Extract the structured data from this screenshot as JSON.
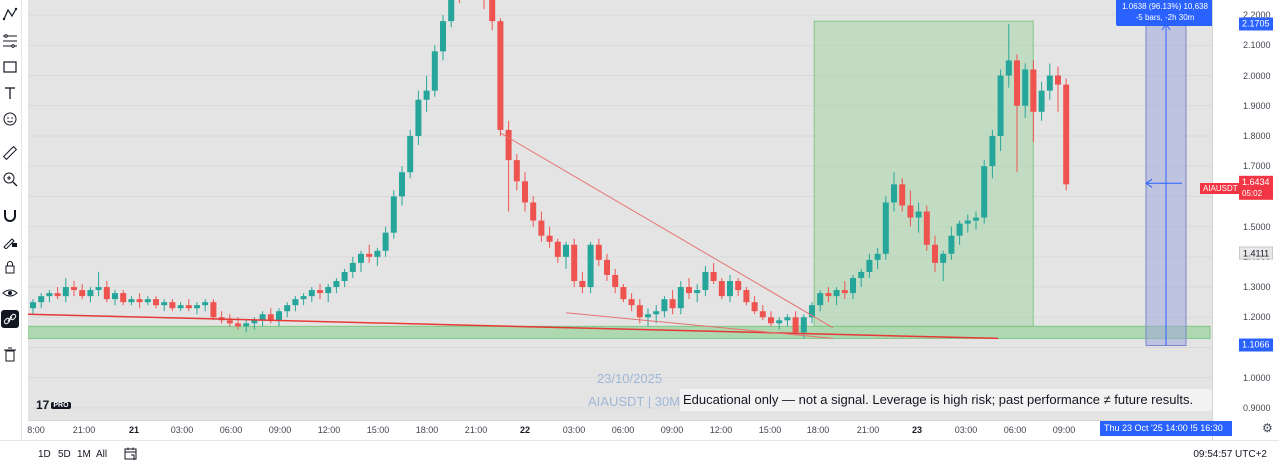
{
  "symbol": "AIAUSDT",
  "timeframe": "30M",
  "watermark": {
    "date": "23/10/2025",
    "symbol_line": "AIAUSDT | 30M"
  },
  "disclaimer": "Educational only — not a signal. Leverage is high risk; past performance ≠ future results.",
  "brand": {
    "logo_text": "17",
    "pro_badge": "PRO"
  },
  "measure": {
    "line1": "1.0638 (96.13%) 10,638",
    "line2": "-5 bars, -2h 30m"
  },
  "price_axis": {
    "ticks": [
      "2.2000",
      "2.1000",
      "2.0000",
      "1.9000",
      "1.8000",
      "1.7000",
      "1.6000",
      "1.5000",
      "1.4000",
      "1.3000",
      "1.2000",
      "1.1000",
      "1.0000",
      "0.9000"
    ],
    "tag_top": "2.1705",
    "tag_current_name": "AIAUSDT",
    "tag_current": "1.6434",
    "tag_countdown": "05:02",
    "tag_level": "1.4111",
    "tag_bottom": "1.1066"
  },
  "time_axis": {
    "ticks": [
      {
        "label": "8:00",
        "bold": false
      },
      {
        "label": "21:00",
        "bold": false
      },
      {
        "label": "21",
        "bold": true
      },
      {
        "label": "03:00",
        "bold": false
      },
      {
        "label": "06:00",
        "bold": false
      },
      {
        "label": "09:00",
        "bold": false
      },
      {
        "label": "12:00",
        "bold": false
      },
      {
        "label": "15:00",
        "bold": false
      },
      {
        "label": "18:00",
        "bold": false
      },
      {
        "label": "21:00",
        "bold": false
      },
      {
        "label": "22",
        "bold": true
      },
      {
        "label": "03:00",
        "bold": false
      },
      {
        "label": "06:00",
        "bold": false
      },
      {
        "label": "09:00",
        "bold": false
      },
      {
        "label": "12:00",
        "bold": false
      },
      {
        "label": "15:00",
        "bold": false
      },
      {
        "label": "18:00",
        "bold": false
      },
      {
        "label": "21:00",
        "bold": false
      },
      {
        "label": "23",
        "bold": true
      },
      {
        "label": "03:00",
        "bold": false
      },
      {
        "label": "06:00",
        "bold": false
      },
      {
        "label": "09:00",
        "bold": false
      }
    ],
    "crosshair_label": "Thu 23 Oct '25   14:00   !5   16:30"
  },
  "bottom_bar": {
    "ranges": [
      "1D",
      "5D",
      "1M",
      "All"
    ],
    "clock": "09:54:57 UTC+2"
  },
  "toolbar_icons": [
    "pattern-icon",
    "fib-icon",
    "rectangle-icon",
    "text-icon",
    "emoji-icon",
    "ruler-icon",
    "zoom-icon",
    "magnet-icon",
    "lock-drawing-icon",
    "lock-icon",
    "eye-icon",
    "link-icon",
    "trash-icon"
  ],
  "colors": {
    "up": "#26a69a",
    "down": "#ef5350",
    "accent": "#2962ff",
    "zone": "#a5d6a7",
    "background": "#e4e4e4"
  },
  "chart_data": {
    "type": "candlestick",
    "symbol": "AIAUSDT",
    "interval": "30m",
    "ylim": [
      0.86,
      2.25
    ],
    "candles": [
      [
        1.23,
        1.26,
        1.21,
        1.25
      ],
      [
        1.25,
        1.28,
        1.23,
        1.27
      ],
      [
        1.27,
        1.29,
        1.25,
        1.28
      ],
      [
        1.28,
        1.3,
        1.26,
        1.27
      ],
      [
        1.27,
        1.33,
        1.25,
        1.3
      ],
      [
        1.3,
        1.32,
        1.27,
        1.29
      ],
      [
        1.29,
        1.31,
        1.26,
        1.27
      ],
      [
        1.27,
        1.3,
        1.25,
        1.29
      ],
      [
        1.29,
        1.35,
        1.27,
        1.3
      ],
      [
        1.3,
        1.32,
        1.25,
        1.26
      ],
      [
        1.26,
        1.29,
        1.24,
        1.28
      ],
      [
        1.28,
        1.29,
        1.24,
        1.25
      ],
      [
        1.25,
        1.27,
        1.24,
        1.26
      ],
      [
        1.26,
        1.28,
        1.23,
        1.25
      ],
      [
        1.25,
        1.27,
        1.24,
        1.26
      ],
      [
        1.26,
        1.27,
        1.23,
        1.24
      ],
      [
        1.24,
        1.26,
        1.22,
        1.25
      ],
      [
        1.25,
        1.26,
        1.22,
        1.23
      ],
      [
        1.23,
        1.25,
        1.22,
        1.24
      ],
      [
        1.24,
        1.26,
        1.22,
        1.23
      ],
      [
        1.23,
        1.25,
        1.21,
        1.24
      ],
      [
        1.24,
        1.26,
        1.22,
        1.25
      ],
      [
        1.25,
        1.26,
        1.19,
        1.2
      ],
      [
        1.2,
        1.22,
        1.18,
        1.19
      ],
      [
        1.19,
        1.21,
        1.17,
        1.18
      ],
      [
        1.18,
        1.2,
        1.16,
        1.17
      ],
      [
        1.17,
        1.19,
        1.15,
        1.18
      ],
      [
        1.18,
        1.2,
        1.16,
        1.19
      ],
      [
        1.19,
        1.22,
        1.17,
        1.21
      ],
      [
        1.21,
        1.23,
        1.18,
        1.19
      ],
      [
        1.19,
        1.23,
        1.17,
        1.22
      ],
      [
        1.22,
        1.25,
        1.2,
        1.24
      ],
      [
        1.24,
        1.27,
        1.22,
        1.26
      ],
      [
        1.26,
        1.28,
        1.24,
        1.27
      ],
      [
        1.27,
        1.3,
        1.25,
        1.29
      ],
      [
        1.29,
        1.31,
        1.26,
        1.28
      ],
      [
        1.28,
        1.31,
        1.25,
        1.3
      ],
      [
        1.3,
        1.33,
        1.28,
        1.32
      ],
      [
        1.32,
        1.36,
        1.3,
        1.35
      ],
      [
        1.35,
        1.4,
        1.33,
        1.38
      ],
      [
        1.38,
        1.42,
        1.35,
        1.41
      ],
      [
        1.41,
        1.44,
        1.38,
        1.4
      ],
      [
        1.4,
        1.43,
        1.37,
        1.42
      ],
      [
        1.42,
        1.5,
        1.4,
        1.48
      ],
      [
        1.48,
        1.62,
        1.46,
        1.6
      ],
      [
        1.6,
        1.7,
        1.57,
        1.68
      ],
      [
        1.68,
        1.82,
        1.66,
        1.8
      ],
      [
        1.8,
        1.95,
        1.77,
        1.92
      ],
      [
        1.92,
        2.0,
        1.88,
        1.95
      ],
      [
        1.95,
        2.1,
        1.93,
        2.08
      ],
      [
        2.08,
        2.2,
        2.05,
        2.18
      ],
      [
        2.18,
        2.3,
        2.16,
        2.28
      ],
      [
        2.28,
        2.33,
        2.24,
        2.27
      ],
      [
        2.27,
        2.32,
        2.25,
        2.3
      ],
      [
        2.3,
        2.33,
        2.26,
        2.28
      ],
      [
        2.28,
        2.3,
        2.22,
        2.25
      ],
      [
        2.25,
        2.27,
        2.15,
        2.18
      ],
      [
        2.18,
        2.19,
        1.8,
        1.82
      ],
      [
        1.82,
        1.85,
        1.55,
        1.72
      ],
      [
        1.72,
        1.74,
        1.62,
        1.65
      ],
      [
        1.65,
        1.68,
        1.55,
        1.58
      ],
      [
        1.58,
        1.6,
        1.5,
        1.52
      ],
      [
        1.52,
        1.55,
        1.45,
        1.47
      ],
      [
        1.47,
        1.5,
        1.43,
        1.45
      ],
      [
        1.45,
        1.46,
        1.38,
        1.4
      ],
      [
        1.4,
        1.45,
        1.36,
        1.44
      ],
      [
        1.44,
        1.46,
        1.3,
        1.32
      ],
      [
        1.32,
        1.35,
        1.28,
        1.3
      ],
      [
        1.3,
        1.45,
        1.28,
        1.44
      ],
      [
        1.44,
        1.46,
        1.37,
        1.39
      ],
      [
        1.39,
        1.41,
        1.32,
        1.34
      ],
      [
        1.34,
        1.36,
        1.28,
        1.3
      ],
      [
        1.3,
        1.31,
        1.25,
        1.26
      ],
      [
        1.26,
        1.28,
        1.22,
        1.24
      ],
      [
        1.24,
        1.26,
        1.18,
        1.2
      ],
      [
        1.2,
        1.23,
        1.17,
        1.21
      ],
      [
        1.21,
        1.24,
        1.18,
        1.22
      ],
      [
        1.22,
        1.27,
        1.2,
        1.26
      ],
      [
        1.26,
        1.29,
        1.21,
        1.23
      ],
      [
        1.23,
        1.32,
        1.21,
        1.3
      ],
      [
        1.3,
        1.33,
        1.26,
        1.28
      ],
      [
        1.28,
        1.31,
        1.25,
        1.29
      ],
      [
        1.29,
        1.37,
        1.27,
        1.35
      ],
      [
        1.35,
        1.38,
        1.31,
        1.32
      ],
      [
        1.32,
        1.33,
        1.26,
        1.27
      ],
      [
        1.27,
        1.34,
        1.25,
        1.32
      ],
      [
        1.32,
        1.33,
        1.27,
        1.29
      ],
      [
        1.29,
        1.3,
        1.24,
        1.25
      ],
      [
        1.25,
        1.27,
        1.21,
        1.22
      ],
      [
        1.22,
        1.24,
        1.19,
        1.2
      ],
      [
        1.2,
        1.22,
        1.17,
        1.18
      ],
      [
        1.18,
        1.2,
        1.16,
        1.19
      ],
      [
        1.19,
        1.21,
        1.17,
        1.2
      ],
      [
        1.2,
        1.22,
        1.14,
        1.15
      ],
      [
        1.15,
        1.21,
        1.13,
        1.2
      ],
      [
        1.2,
        1.25,
        1.18,
        1.24
      ],
      [
        1.24,
        1.29,
        1.22,
        1.28
      ],
      [
        1.28,
        1.3,
        1.25,
        1.27
      ],
      [
        1.27,
        1.3,
        1.24,
        1.29
      ],
      [
        1.29,
        1.32,
        1.26,
        1.28
      ],
      [
        1.28,
        1.34,
        1.26,
        1.33
      ],
      [
        1.33,
        1.36,
        1.3,
        1.35
      ],
      [
        1.35,
        1.41,
        1.33,
        1.39
      ],
      [
        1.39,
        1.43,
        1.36,
        1.41
      ],
      [
        1.41,
        1.6,
        1.39,
        1.58
      ],
      [
        1.58,
        1.68,
        1.55,
        1.64
      ],
      [
        1.64,
        1.66,
        1.55,
        1.57
      ],
      [
        1.57,
        1.62,
        1.5,
        1.53
      ],
      [
        1.53,
        1.58,
        1.48,
        1.55
      ],
      [
        1.55,
        1.57,
        1.42,
        1.44
      ],
      [
        1.44,
        1.47,
        1.35,
        1.38
      ],
      [
        1.38,
        1.42,
        1.32,
        1.41
      ],
      [
        1.41,
        1.5,
        1.39,
        1.47
      ],
      [
        1.47,
        1.52,
        1.44,
        1.51
      ],
      [
        1.51,
        1.54,
        1.48,
        1.52
      ],
      [
        1.52,
        1.55,
        1.49,
        1.53
      ],
      [
        1.53,
        1.72,
        1.51,
        1.7
      ],
      [
        1.7,
        1.82,
        1.66,
        1.8
      ],
      [
        1.8,
        2.02,
        1.75,
        2.0
      ],
      [
        2.0,
        2.17,
        1.96,
        2.05
      ],
      [
        2.05,
        2.07,
        1.68,
        1.9
      ],
      [
        1.9,
        2.04,
        1.86,
        2.02
      ],
      [
        2.02,
        2.05,
        1.78,
        1.88
      ],
      [
        1.88,
        1.98,
        1.85,
        1.95
      ],
      [
        1.95,
        2.04,
        1.92,
        2.0
      ],
      [
        2.0,
        2.03,
        1.88,
        1.97
      ],
      [
        1.97,
        1.99,
        1.62,
        1.64
      ]
    ],
    "drawings": {
      "demand_zone": [
        1.13,
        1.17
      ],
      "accumulation_box": {
        "top": 2.18,
        "bottom": 1.17
      },
      "trendline_descending": {
        "from": 1.81,
        "to": 1.13
      },
      "trendline_support": {
        "from": 1.21,
        "to": 1.13
      },
      "measure_range": {
        "from": 1.1066,
        "to": 2.1705
      }
    }
  }
}
